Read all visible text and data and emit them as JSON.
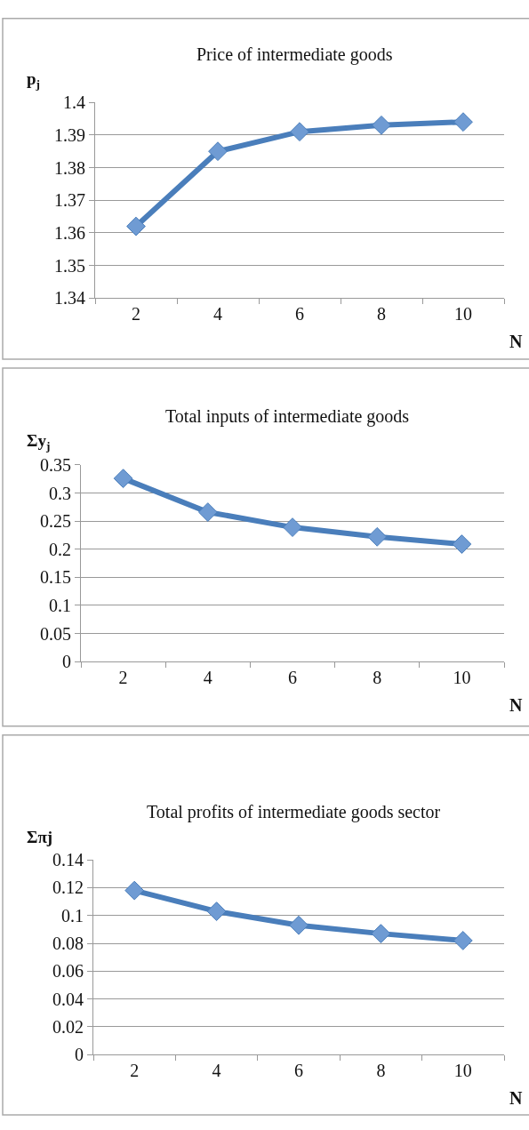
{
  "chart_data": [
    {
      "type": "line",
      "title": "Price of intermediate goods",
      "ylabel": "p$_{j}$",
      "xlabel": "N",
      "categories": [
        "2",
        "4",
        "6",
        "8",
        "10"
      ],
      "series": [
        {
          "color": "#4a7ebb",
          "values": [
            1.362,
            1.385,
            1.391,
            1.393,
            1.394
          ]
        }
      ],
      "ylim": [
        1.34,
        1.4
      ],
      "yticks": [
        1.34,
        1.35,
        1.36,
        1.37,
        1.38,
        1.39,
        1.4
      ],
      "grid": "y",
      "marker": "diamond",
      "line_style": "solid"
    },
    {
      "type": "line",
      "title": "Total inputs of intermediate goods",
      "ylabel": "Σy$_{j}$",
      "xlabel": "N",
      "categories": [
        "2",
        "4",
        "6",
        "8",
        "10"
      ],
      "series": [
        {
          "color": "#4a7ebb",
          "values": [
            0.326,
            0.266,
            0.239,
            0.222,
            0.209
          ]
        }
      ],
      "ylim": [
        0,
        0.35
      ],
      "yticks": [
        0,
        0.05,
        0.1,
        0.15,
        0.2,
        0.25,
        0.3,
        0.35
      ],
      "grid": "y",
      "marker": "diamond",
      "line_style": "solid"
    },
    {
      "type": "line",
      "title": "Total profits of intermediate goods sector",
      "ylabel": "Σπj",
      "xlabel": "N",
      "categories": [
        "2",
        "4",
        "6",
        "8",
        "10"
      ],
      "series": [
        {
          "color": "#4a7ebb",
          "values": [
            0.118,
            0.103,
            0.093,
            0.087,
            0.082
          ]
        }
      ],
      "ylim": [
        0,
        0.14
      ],
      "yticks": [
        0,
        0.02,
        0.04,
        0.06,
        0.08,
        0.1,
        0.12,
        0.14
      ],
      "grid": "y",
      "marker": "diamond",
      "line_style": "solid"
    }
  ]
}
